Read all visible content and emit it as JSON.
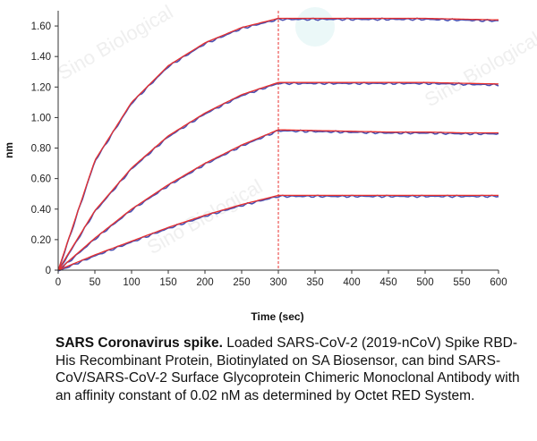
{
  "chart_data": {
    "type": "line",
    "xlabel": "Time (sec)",
    "ylabel": "nm",
    "xlim": [
      0,
      600
    ],
    "ylim": [
      0,
      1.7
    ],
    "xticks": [
      "0",
      "50",
      "100",
      "150",
      "200",
      "250",
      "300",
      "350",
      "400",
      "450",
      "500",
      "550",
      "600"
    ],
    "yticks": [
      "0",
      "0.20",
      "0.40",
      "0.60",
      "0.80",
      "1.00",
      "1.20",
      "1.40",
      "1.60"
    ],
    "association_end": 300,
    "grid": false,
    "series": [
      {
        "x": [
          0,
          50,
          100,
          150,
          200,
          250,
          300,
          350,
          400,
          450,
          500,
          550,
          600
        ],
        "y": [
          0,
          0.72,
          1.1,
          1.34,
          1.49,
          1.59,
          1.65,
          1.65,
          1.65,
          1.65,
          1.65,
          1.645,
          1.64
        ]
      },
      {
        "x": [
          0,
          50,
          100,
          150,
          200,
          250,
          300,
          350,
          400,
          450,
          500,
          550,
          600
        ],
        "y": [
          0,
          0.39,
          0.67,
          0.88,
          1.03,
          1.15,
          1.23,
          1.23,
          1.23,
          1.23,
          1.23,
          1.225,
          1.22
        ]
      },
      {
        "x": [
          0,
          50,
          100,
          150,
          200,
          250,
          300,
          350,
          400,
          450,
          500,
          550,
          600
        ],
        "y": [
          0,
          0.21,
          0.4,
          0.56,
          0.7,
          0.82,
          0.92,
          0.915,
          0.91,
          0.905,
          0.905,
          0.9,
          0.9
        ]
      },
      {
        "x": [
          0,
          50,
          100,
          150,
          200,
          250,
          300,
          350,
          400,
          450,
          500,
          550,
          600
        ],
        "y": [
          0,
          0.1,
          0.19,
          0.28,
          0.36,
          0.43,
          0.49,
          0.49,
          0.49,
          0.49,
          0.49,
          0.49,
          0.49
        ]
      }
    ],
    "colors": {
      "fit": "#e8312f",
      "data": "#4b4fb0",
      "marker": "#e8312f",
      "axis": "#333333"
    }
  },
  "caption": {
    "bold": "SARS Coronavirus spike.",
    "text": " Loaded SARS-CoV-2 (2019-nCoV) Spike RBD-His Recombinant Protein, Biotinylated on SA Biosensor, can bind SARS-CoV/SARS-CoV-2 Surface Glycoprotein Chimeric Monoclonal Antibody with an affinity constant of 0.02 nM as determined by Octet RED System."
  },
  "watermark": {
    "brand": "Sino Biological"
  }
}
